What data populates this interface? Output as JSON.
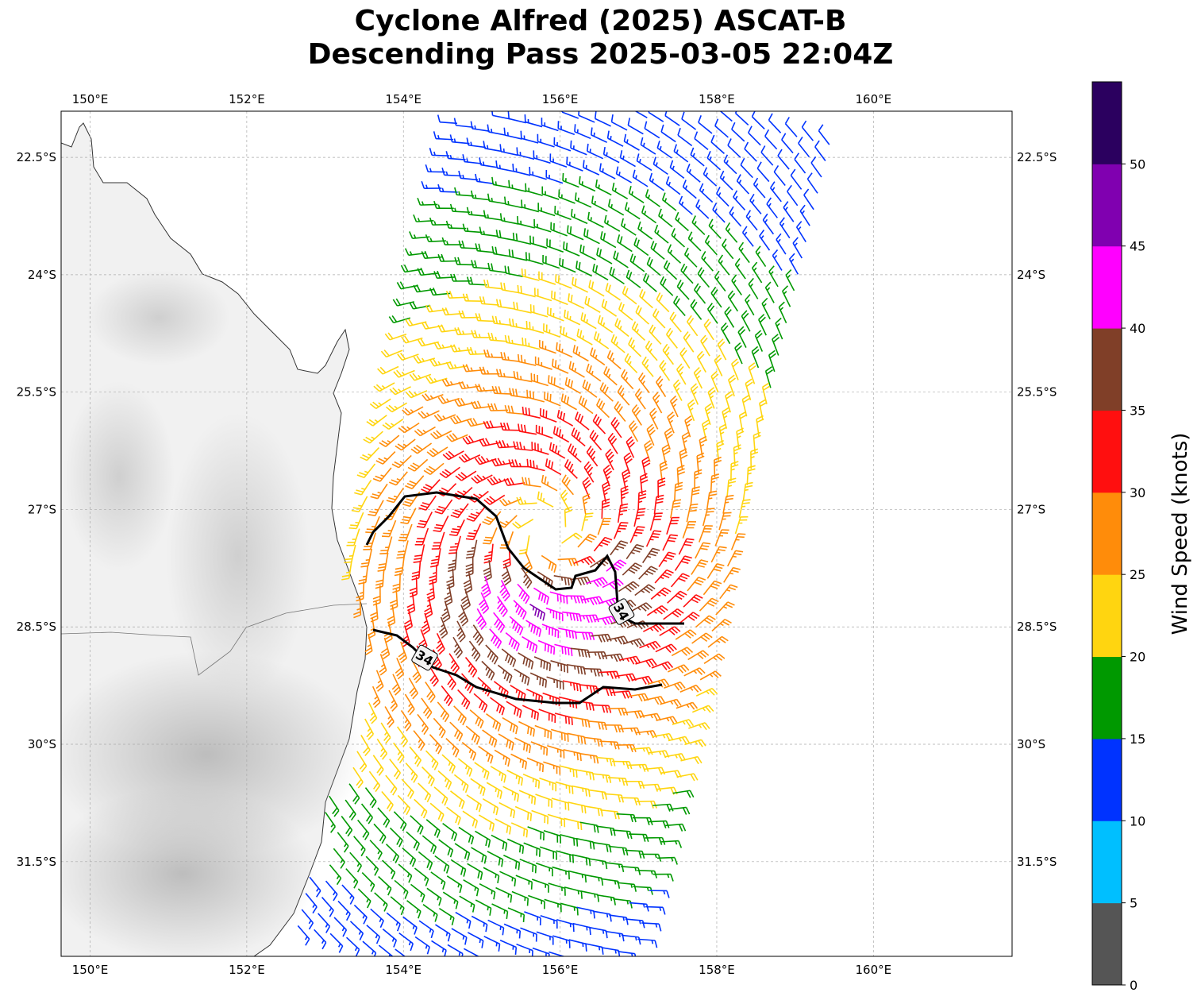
{
  "title": {
    "line1": "Cyclone Alfred (2025) ASCAT-B",
    "line2": "Descending Pass 2025-03-05 22:04Z"
  },
  "map": {
    "lon_range": [
      149.63,
      161.77
    ],
    "lat_range": [
      -32.71,
      -21.91
    ],
    "lon_ticks": [
      150,
      152,
      154,
      156,
      158,
      160
    ],
    "lon_tick_labels": [
      "150°E",
      "152°E",
      "154°E",
      "156°E",
      "158°E",
      "160°E"
    ],
    "lat_ticks": [
      -22.5,
      -24,
      -25.5,
      -27,
      -28.5,
      -30,
      -31.5
    ],
    "lat_tick_labels": [
      "22.5°S",
      "24°S",
      "25.5°S",
      "27°S",
      "28.5°S",
      "30°S",
      "31.5°S"
    ],
    "grid": true
  },
  "wind_field": {
    "type": "wind-barbs",
    "center_lon": 155.85,
    "center_lat": -27.3,
    "rotation": "clockwise",
    "max_speed_kt": 50,
    "center_speed_kt": 15
  },
  "contour": {
    "level_label_north": "34",
    "level_label_south": "34"
  },
  "colorbar": {
    "label": "Wind Speed (knots)",
    "ticks": [
      "0",
      "5",
      "10",
      "15",
      "20",
      "25",
      "30",
      "35",
      "40",
      "45",
      "50"
    ],
    "bounds": [
      0,
      5,
      10,
      15,
      20,
      25,
      30,
      35,
      40,
      45,
      50,
      55
    ],
    "colors": [
      "#555555",
      "#00bfff",
      "#0033ff",
      "#009900",
      "#ffd510",
      "#ff8c0a",
      "#ff0f0f",
      "#803f28",
      "#ff00ff",
      "#8000b0",
      "#2b005f"
    ]
  }
}
